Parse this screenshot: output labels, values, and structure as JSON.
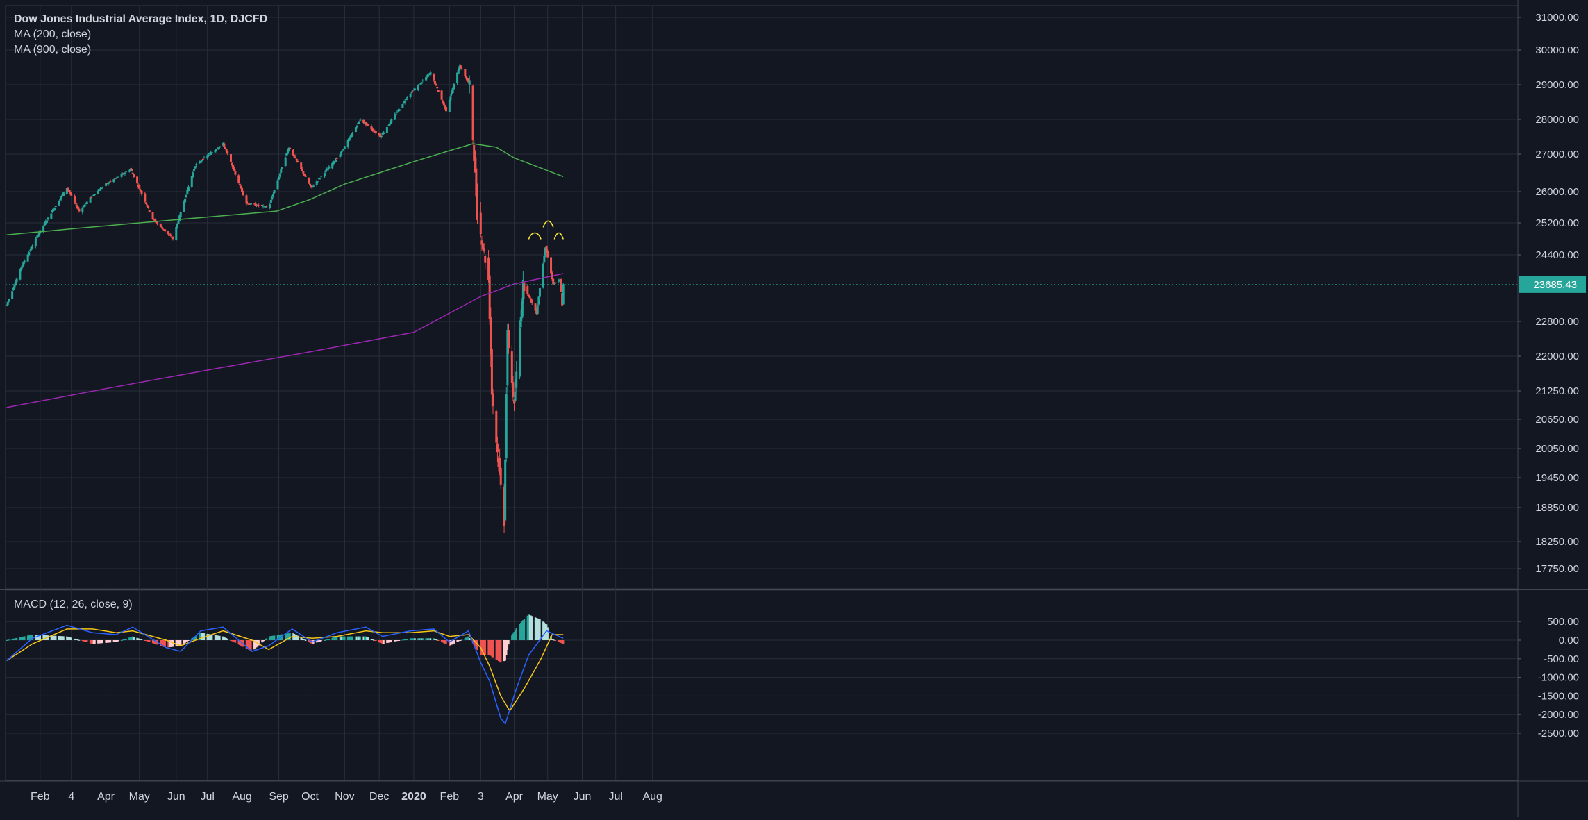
{
  "colors": {
    "background": "#131722",
    "grid": "#2a2e39",
    "axis_text": "#d1d4dc",
    "candle_up": "#26a69a",
    "candle_down": "#ef5350",
    "ma200": "#4caf50",
    "ma900": "#9c27b0",
    "macd_line": "#2962ff",
    "signal_line": "#f5c518",
    "hist_up_strong": "#26a69a",
    "hist_up_weak": "#b2dfdb",
    "hist_down_strong": "#ef5350",
    "hist_down_weak": "#ffcdd2",
    "annotation": "#ffeb3b",
    "price_label_bg": "#26a69a"
  },
  "legend": {
    "title": "Dow Jones Industrial Average Index, 1D, DJCFD",
    "ma1": "MA (200, close)",
    "ma2": "MA (900, close)",
    "macd": "MACD (12, 26, close, 9)"
  },
  "last_price_label": "23685.43",
  "chart_data": [
    {
      "type": "candlestick",
      "title": "Dow Jones Industrial Average Index, 1D, DJCFD",
      "price_axis_ticks": [
        "31000.00",
        "30000.00",
        "29000.00",
        "28000.00",
        "27000.00",
        "26000.00",
        "25200.00",
        "24400.00",
        "22800.00",
        "22000.00",
        "21250.00",
        "20650.00",
        "20050.00",
        "19450.00",
        "18850.00",
        "18250.00",
        "17750.00"
      ],
      "time_axis_labels": [
        "Feb",
        "4",
        "Apr",
        "May",
        "Jun",
        "Jul",
        "Aug",
        "Sep",
        "Oct",
        "Nov",
        "Dec",
        "2020",
        "Feb",
        "3",
        "Apr",
        "May",
        "Jun",
        "Jul",
        "Aug"
      ],
      "last_price": 23685.43,
      "price_path": [
        [
          "2019-01-02",
          23200
        ],
        [
          "2019-01-15",
          24100
        ],
        [
          "2019-02-01",
          25000
        ],
        [
          "2019-02-25",
          26100
        ],
        [
          "2019-03-08",
          25500
        ],
        [
          "2019-03-20",
          25900
        ],
        [
          "2019-04-01",
          26200
        ],
        [
          "2019-04-23",
          26600
        ],
        [
          "2019-05-13",
          25300
        ],
        [
          "2019-05-31",
          24800
        ],
        [
          "2019-06-20",
          26700
        ],
        [
          "2019-07-15",
          27300
        ],
        [
          "2019-08-05",
          25700
        ],
        [
          "2019-08-25",
          25600
        ],
        [
          "2019-09-12",
          27200
        ],
        [
          "2019-10-02",
          26100
        ],
        [
          "2019-10-28",
          27000
        ],
        [
          "2019-11-15",
          28000
        ],
        [
          "2019-12-03",
          27500
        ],
        [
          "2019-12-27",
          28650
        ],
        [
          "2020-01-17",
          29350
        ],
        [
          "2020-01-31",
          28250
        ],
        [
          "2020-02-12",
          29550
        ],
        [
          "2020-02-21",
          29000
        ],
        [
          "2020-02-28",
          25400
        ],
        [
          "2020-03-09",
          23800
        ],
        [
          "2020-03-12",
          21200
        ],
        [
          "2020-03-16",
          20200
        ],
        [
          "2020-03-23",
          18600
        ],
        [
          "2020-03-26",
          22500
        ],
        [
          "2020-04-01",
          20900
        ],
        [
          "2020-04-09",
          23700
        ],
        [
          "2020-04-21",
          23000
        ],
        [
          "2020-04-29",
          24600
        ],
        [
          "2020-05-06",
          23700
        ],
        [
          "2020-05-12",
          23800
        ],
        [
          "2020-05-14",
          23200
        ],
        [
          "2020-05-15",
          23685.43
        ]
      ],
      "ma200": [
        [
          "2019-01-02",
          24900
        ],
        [
          "2019-03-01",
          25050
        ],
        [
          "2019-05-01",
          25200
        ],
        [
          "2019-07-01",
          25350
        ],
        [
          "2019-09-01",
          25500
        ],
        [
          "2019-10-01",
          25800
        ],
        [
          "2019-11-01",
          26200
        ],
        [
          "2019-12-02",
          26500
        ],
        [
          "2020-01-02",
          26800
        ],
        [
          "2020-02-03",
          27100
        ],
        [
          "2020-02-24",
          27300
        ],
        [
          "2020-03-16",
          27200
        ],
        [
          "2020-04-01",
          26900
        ],
        [
          "2020-05-15",
          26400
        ]
      ],
      "ma900": [
        [
          "2019-01-02",
          20900
        ],
        [
          "2019-04-01",
          21300
        ],
        [
          "2019-07-01",
          21700
        ],
        [
          "2019-10-01",
          22100
        ],
        [
          "2020-01-02",
          22550
        ],
        [
          "2020-03-02",
          23400
        ],
        [
          "2020-04-01",
          23700
        ],
        [
          "2020-05-15",
          23950
        ]
      ],
      "annotations": "three hand-drawn yellow arcs above the April–May 2020 highs"
    },
    {
      "type": "line",
      "title": "MACD (12, 26, close, 9)",
      "axis_ticks": [
        "500.00",
        "0.00",
        "-500.00",
        "-1000.00",
        "-1500.00",
        "-2000.00",
        "-2500.00"
      ],
      "macd": [
        [
          "2019-01-02",
          -550
        ],
        [
          "2019-01-25",
          50
        ],
        [
          "2019-02-25",
          400
        ],
        [
          "2019-03-20",
          200
        ],
        [
          "2019-04-10",
          150
        ],
        [
          "2019-04-25",
          350
        ],
        [
          "2019-05-25",
          -200
        ],
        [
          "2019-06-07",
          -300
        ],
        [
          "2019-06-25",
          250
        ],
        [
          "2019-07-15",
          350
        ],
        [
          "2019-08-10",
          -300
        ],
        [
          "2019-08-25",
          -150
        ],
        [
          "2019-09-15",
          300
        ],
        [
          "2019-10-03",
          -50
        ],
        [
          "2019-10-25",
          200
        ],
        [
          "2019-11-20",
          350
        ],
        [
          "2019-12-05",
          100
        ],
        [
          "2019-12-30",
          250
        ],
        [
          "2020-01-20",
          300
        ],
        [
          "2020-02-03",
          -50
        ],
        [
          "2020-02-20",
          250
        ],
        [
          "2020-03-02",
          -600
        ],
        [
          "2020-03-10",
          -1100
        ],
        [
          "2020-03-20",
          -2100
        ],
        [
          "2020-03-24",
          -2250
        ],
        [
          "2020-04-03",
          -1300
        ],
        [
          "2020-04-14",
          -400
        ],
        [
          "2020-04-30",
          250
        ],
        [
          "2020-05-15",
          50
        ]
      ],
      "signal": [
        [
          "2019-01-02",
          -550
        ],
        [
          "2019-01-25",
          -100
        ],
        [
          "2019-02-25",
          300
        ],
        [
          "2019-03-20",
          300
        ],
        [
          "2019-04-10",
          200
        ],
        [
          "2019-04-25",
          250
        ],
        [
          "2019-05-25",
          0
        ],
        [
          "2019-06-07",
          -150
        ],
        [
          "2019-06-25",
          50
        ],
        [
          "2019-07-15",
          250
        ],
        [
          "2019-08-10",
          0
        ],
        [
          "2019-08-25",
          -250
        ],
        [
          "2019-09-15",
          100
        ],
        [
          "2019-10-03",
          50
        ],
        [
          "2019-10-25",
          100
        ],
        [
          "2019-11-20",
          250
        ],
        [
          "2019-12-05",
          200
        ],
        [
          "2019-12-30",
          200
        ],
        [
          "2020-01-20",
          250
        ],
        [
          "2020-02-03",
          100
        ],
        [
          "2020-02-20",
          150
        ],
        [
          "2020-03-02",
          -200
        ],
        [
          "2020-03-10",
          -700
        ],
        [
          "2020-03-20",
          -1500
        ],
        [
          "2020-03-28",
          -1900
        ],
        [
          "2020-04-10",
          -1300
        ],
        [
          "2020-04-25",
          -500
        ],
        [
          "2020-05-05",
          150
        ],
        [
          "2020-05-15",
          150
        ]
      ],
      "histogram": "macd minus signal, drawn as bars"
    }
  ]
}
